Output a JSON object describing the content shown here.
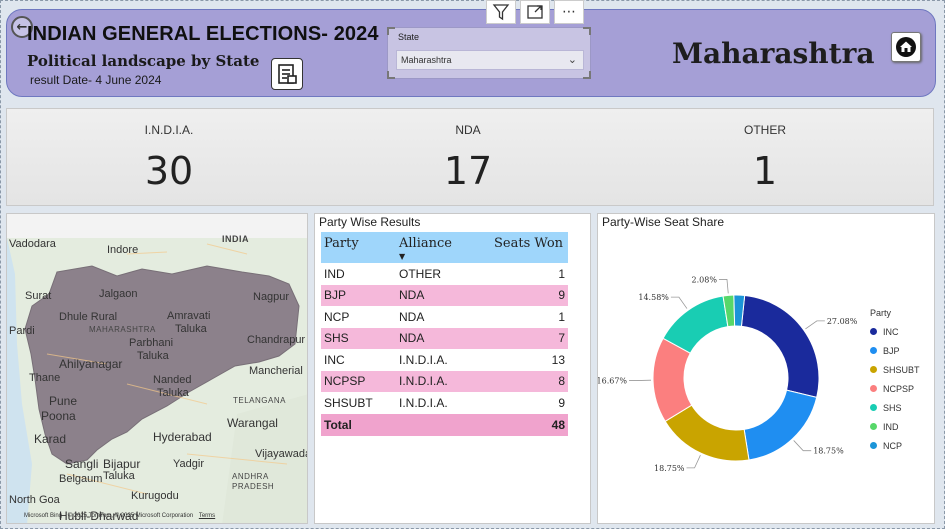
{
  "header": {
    "title": "INDIAN GENERAL ELECTIONS- 2024",
    "subtitle": "Political landscape by State",
    "result_date": "result Date- 4 June 2024",
    "slicer_label": "State",
    "slicer_value": "Maharashtra",
    "state_name": "Maharashtra",
    "toolbar": {
      "filter_icon": "filter-icon",
      "focus_icon": "focus-mode-icon",
      "more_label": "⋯"
    }
  },
  "kpis": [
    {
      "label": "I.N.D.I.A.",
      "value": "30"
    },
    {
      "label": "NDA",
      "value": "17"
    },
    {
      "label": "OTHER",
      "value": "1"
    }
  ],
  "map": {
    "labels": [
      "Vadodara",
      "Indore",
      "INDIA",
      "Surat",
      "Jalgaon",
      "Nagpur",
      "Dhule Rural",
      "Amravati",
      "Pardi",
      "MAHARASHTRA",
      "Taluka",
      "Chandrapur",
      "Parbhani",
      "Ahilyanagar",
      "Taluka",
      "Thane",
      "Nanded",
      "Mancherial",
      "Pune",
      "Taluka",
      "Poona",
      "TELANGANA",
      "Karad",
      "Warangal",
      "Hyderabad",
      "Sangli",
      "Bijapur",
      "Yadgir",
      "Taluka",
      "Vijayawada",
      "Belgaum",
      "ANDHRA",
      "PRADESH",
      "Kurugodu",
      "North Goa",
      "Hubli-Dharwad"
    ],
    "copyright": "© 2025 TomTom, © 2025 Microsoft Corporation",
    "terms": "Terms",
    "brand": "Microsoft Bing"
  },
  "table": {
    "title": "Party Wise Results",
    "columns": [
      "Party",
      "Alliance",
      "Seats Won"
    ],
    "rows": [
      {
        "party": "IND",
        "alliance": "OTHER",
        "seats": "1"
      },
      {
        "party": "BJP",
        "alliance": "NDA",
        "seats": "9"
      },
      {
        "party": "NCP",
        "alliance": "NDA",
        "seats": "1"
      },
      {
        "party": "SHS",
        "alliance": "NDA",
        "seats": "7"
      },
      {
        "party": "INC",
        "alliance": "I.N.D.I.A.",
        "seats": "13"
      },
      {
        "party": "NCPSP",
        "alliance": "I.N.D.I.A.",
        "seats": "8"
      },
      {
        "party": "SHSUBT",
        "alliance": "I.N.D.I.A.",
        "seats": "9"
      }
    ],
    "total_label": "Total",
    "total_value": "48"
  },
  "chart_data": {
    "type": "pie",
    "title": "Party-Wise Seat Share",
    "legend_title": "Party",
    "legend_position": "right",
    "categories": [
      "INC",
      "BJP",
      "SHSUBT",
      "NCPSP",
      "SHS",
      "IND",
      "NCP"
    ],
    "values": [
      27.08,
      18.75,
      18.75,
      16.67,
      14.58,
      2.08,
      2.08
    ],
    "value_labels": [
      "27.08%",
      "18.75%",
      "18.75%",
      "16.67%",
      "14.58%",
      "2.08%",
      ""
    ],
    "colors": [
      "#1a2a9c",
      "#1f8ef1",
      "#c9a400",
      "#fb7f7f",
      "#19cdb3",
      "#57d769",
      "#1b95d8"
    ]
  },
  "colors": {
    "header_bg": "#a59fd6",
    "table_header": "#9fd6fb",
    "row_highlight": "#f5b8da"
  }
}
